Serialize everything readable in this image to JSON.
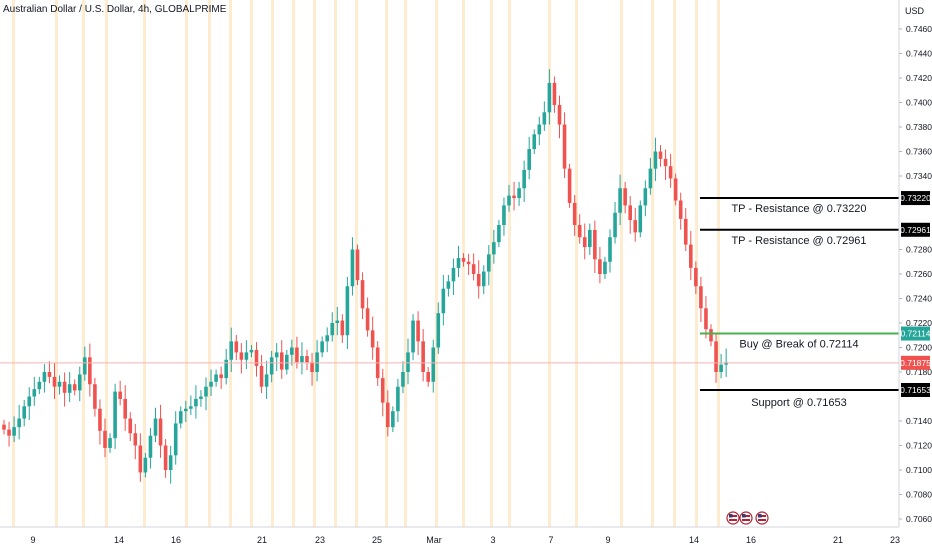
{
  "header": {
    "title": "Australian Dollar / U.S. Dollar, 4h, GLOBALPRIME",
    "currency": "USD"
  },
  "colors": {
    "up": "#26a69a",
    "down": "#ef5350",
    "session_band": "#fdeccf",
    "current_price_line": "#f7b2b2",
    "level_line": "#000000",
    "buy_line": "#4caf50",
    "current_tag": "#ef5350",
    "buy_tag": "#26a69a",
    "level_tag": "#000000",
    "axis_text": "#131722"
  },
  "chart_data": {
    "type": "candlestick",
    "title": "Australian Dollar / U.S. Dollar, 4h, GLOBALPRIME",
    "ylabel": "USD",
    "ylim": [
      0.7052,
      0.7484
    ],
    "y_ticks": [
      "0.74600",
      "0.74400",
      "0.74200",
      "0.74000",
      "0.73800",
      "0.73600",
      "0.73400",
      "0.72800",
      "0.72600",
      "0.72400",
      "0.72200",
      "0.72000",
      "0.71800",
      "0.71400",
      "0.71200",
      "0.71000",
      "0.70800",
      "0.70600"
    ],
    "x_ticks": [
      "9",
      "14",
      "16",
      "21",
      "23",
      "25",
      "Mar",
      "3",
      "7",
      "9",
      "14",
      "16",
      "21",
      "23"
    ],
    "close_series": [
      0.7133,
      0.7128,
      0.7135,
      0.7142,
      0.7152,
      0.716,
      0.7166,
      0.7172,
      0.718,
      0.7176,
      0.7168,
      0.7172,
      0.7163,
      0.717,
      0.7165,
      0.7178,
      0.7192,
      0.717,
      0.715,
      0.7132,
      0.7118,
      0.7126,
      0.7164,
      0.7158,
      0.7142,
      0.713,
      0.712,
      0.7098,
      0.711,
      0.7128,
      0.7142,
      0.712,
      0.71,
      0.7112,
      0.7138,
      0.7148,
      0.715,
      0.7152,
      0.7158,
      0.716,
      0.7168,
      0.7172,
      0.7178,
      0.7175,
      0.719,
      0.7205,
      0.7196,
      0.719,
      0.7196,
      0.7198,
      0.7185,
      0.7168,
      0.7178,
      0.7192,
      0.7196,
      0.7182,
      0.7194,
      0.72,
      0.7188,
      0.7193,
      0.7188,
      0.718,
      0.7196,
      0.7205,
      0.721,
      0.722,
      0.7222,
      0.721,
      0.725,
      0.728,
      0.7255,
      0.7232,
      0.7214,
      0.72,
      0.7175,
      0.7155,
      0.7135,
      0.7148,
      0.7168,
      0.718,
      0.7196,
      0.7222,
      0.7205,
      0.718,
      0.7172,
      0.72,
      0.7228,
      0.7248,
      0.7254,
      0.7265,
      0.7273,
      0.727,
      0.7268,
      0.726,
      0.725,
      0.7262,
      0.7276,
      0.7286,
      0.73,
      0.7316,
      0.7324,
      0.7322,
      0.733,
      0.7345,
      0.7362,
      0.7374,
      0.7382,
      0.7392,
      0.7416,
      0.7398,
      0.7382,
      0.7346,
      0.7318,
      0.73,
      0.729,
      0.7282,
      0.7296,
      0.7272,
      0.726,
      0.727,
      0.729,
      0.731,
      0.733,
      0.7316,
      0.7304,
      0.7294,
      0.7316,
      0.733,
      0.7346,
      0.736,
      0.7354,
      0.7348,
      0.7338,
      0.732,
      0.7305,
      0.7284,
      0.7265,
      0.725,
      0.7232,
      0.7215,
      0.7205,
      0.718,
      0.7186,
      0.7188
    ],
    "horizontal_levels": [
      {
        "label": "TP - Resistance @ 0.73220",
        "value": 0.7322,
        "tag": "0.73220",
        "style": "level"
      },
      {
        "label": "TP - Resistance @ 0.72961",
        "value": 0.72961,
        "tag": "0.72961",
        "style": "level"
      },
      {
        "label": "Buy @ Break of 0.72114",
        "value": 0.72114,
        "tag": "0.72114",
        "style": "buy"
      },
      {
        "label": "Support @ 0.71653",
        "value": 0.71653,
        "tag": "0.71653",
        "style": "level"
      }
    ],
    "current_price": {
      "value": 0.71875,
      "tag": "0.71875"
    },
    "event_icons": 3,
    "grid": false
  }
}
